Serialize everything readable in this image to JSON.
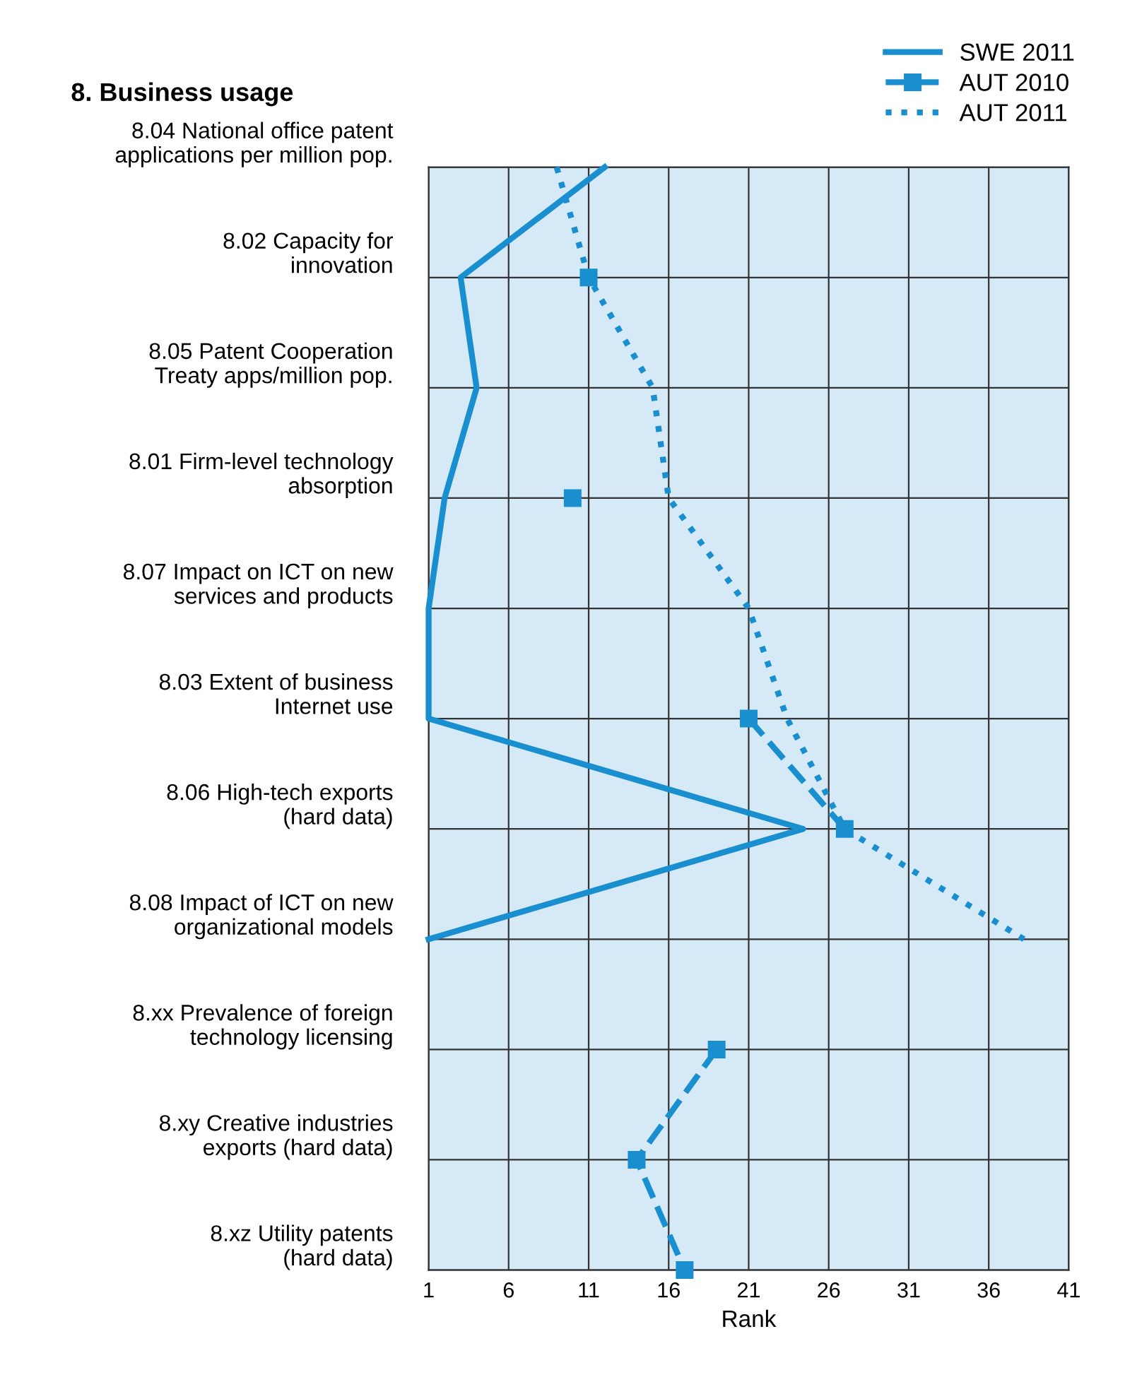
{
  "chart_data": {
    "type": "line",
    "orientation": "horizontal",
    "title": "8. Business usage",
    "xlabel": "Rank",
    "categories": [
      "8.04 National office patent\napplications per million pop.",
      "8.02 Capacity for\ninnovation",
      "8.05 Patent Cooperation\nTreaty apps/million pop.",
      "8.01 Firm-level technology\nabsorption",
      "8.07 Impact on ICT on new\nservices and products",
      "8.03 Extent of business\nInternet use",
      "8.06 High-tech exports\n(hard data)",
      "8.08 Impact of ICT on new\norganizational models",
      "8.xx Prevalence of foreign\ntechnology licensing",
      "8.xy Creative industries\nexports (hard data)",
      "8.xz Utility patents\n(hard data)"
    ],
    "series": [
      {
        "name": "SWE 2011",
        "color": "#1a8fd0",
        "line_style": "solid",
        "marker": "none",
        "values": [
          12,
          3,
          4,
          2,
          1,
          1,
          24.4,
          1,
          null,
          null,
          null
        ]
      },
      {
        "name": "AUT 2010",
        "color": "#1a8fd0",
        "line_style": "dashed",
        "marker": "square",
        "values": [
          null,
          11,
          null,
          10,
          null,
          21,
          27,
          null,
          19,
          14,
          17
        ]
      },
      {
        "name": "AUT 2011",
        "color": "#1a8fd0",
        "line_style": "dotted",
        "marker": "none",
        "values": [
          9,
          11,
          15,
          16,
          21,
          23.4,
          27,
          38.2,
          null,
          null,
          null
        ]
      }
    ],
    "xlim": [
      1,
      41
    ],
    "xticks": [
      1,
      6,
      11,
      16,
      21,
      26,
      31,
      36,
      41
    ],
    "grid": true,
    "legend": "top right"
  }
}
